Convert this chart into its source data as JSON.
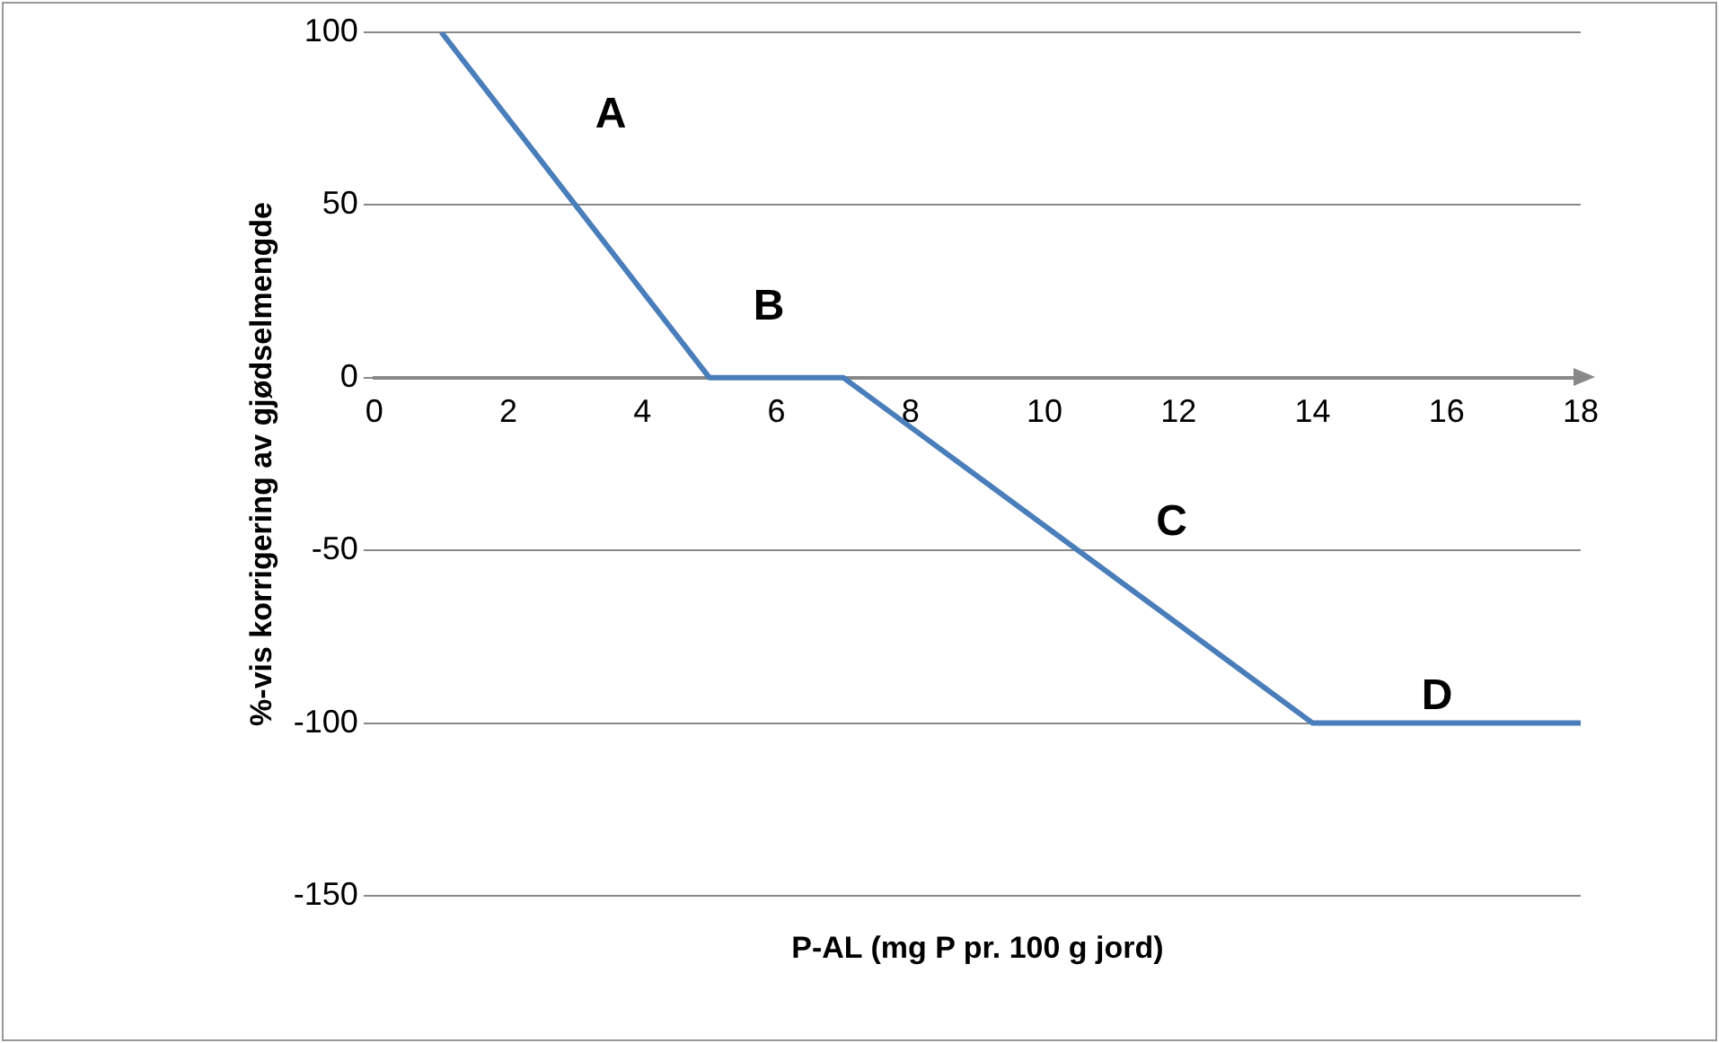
{
  "chart_data": {
    "type": "line",
    "xlabel": "P-AL (mg P pr. 100 g jord)",
    "ylabel": "%-vis korrigering av gjødselmengde",
    "series": [
      {
        "color": "#4a7ebb",
        "x": [
          1,
          5,
          7,
          14,
          18
        ],
        "values": [
          100,
          0,
          0,
          -100,
          -100
        ]
      }
    ],
    "xlim": [
      0,
      18
    ],
    "xticks": [
      0,
      2,
      4,
      6,
      8,
      10,
      12,
      14,
      16,
      18
    ],
    "ylim": [
      -150,
      100
    ],
    "yticks": [
      -150,
      -100,
      -50,
      0,
      50,
      100
    ],
    "grid": "y",
    "legend": false,
    "marker": "none",
    "line_style": "solid",
    "annotations": [
      "A",
      "B",
      "C",
      "D"
    ]
  }
}
